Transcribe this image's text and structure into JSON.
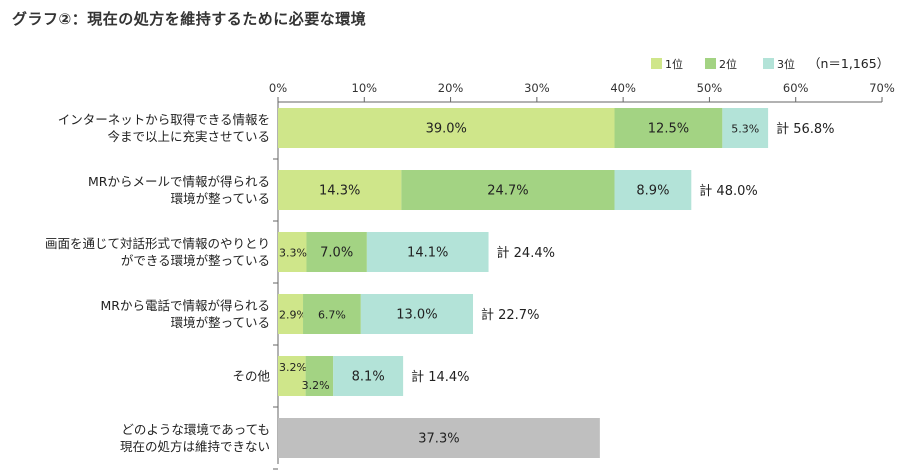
{
  "title": "グラフ②：現在の処方を維持するために必要な環境",
  "chart_data": {
    "type": "bar",
    "orientation": "horizontal",
    "stacked": true,
    "xlim": [
      0,
      70
    ],
    "ticks": [
      "0%",
      "10%",
      "20%",
      "30%",
      "40%",
      "50%",
      "60%",
      "70%"
    ],
    "tick_values": [
      0,
      10,
      20,
      30,
      40,
      50,
      60,
      70
    ],
    "legend": {
      "position": "top-right",
      "entries": [
        "1位",
        "2位",
        "3位"
      ],
      "note": "（n＝1,165）"
    },
    "colors": [
      "#cfe68a",
      "#a3d383",
      "#b3e3d8",
      "#bfbfbf"
    ],
    "categories": [
      {
        "lines": [
          "インターネットから取得できる情報を",
          "今まで以上に充実させている"
        ],
        "values": [
          39.0,
          12.5,
          5.3
        ],
        "labels": [
          "39.0%",
          "12.5%",
          "5.3%"
        ],
        "total": "計 56.8%"
      },
      {
        "lines": [
          "MRからメールで情報が得られる",
          "環境が整っている"
        ],
        "values": [
          14.3,
          24.7,
          8.9
        ],
        "labels": [
          "14.3%",
          "24.7%",
          "8.9%"
        ],
        "total": "計 48.0%"
      },
      {
        "lines": [
          "画面を通じて対話形式で情報のやりとり",
          "ができる環境が整っている"
        ],
        "values": [
          3.3,
          7.0,
          14.1
        ],
        "labels": [
          "3.3%",
          "7.0%",
          "14.1%"
        ],
        "total": "計 24.4%"
      },
      {
        "lines": [
          "MRから電話で情報が得られる",
          "環境が整っている"
        ],
        "values": [
          2.9,
          6.7,
          13.0
        ],
        "labels": [
          "2.9%",
          "6.7%",
          "13.0%"
        ],
        "total": "計 22.7%"
      },
      {
        "lines": [
          "その他"
        ],
        "values": [
          3.2,
          3.2,
          8.1
        ],
        "labels": [
          "3.2%",
          "3.2%",
          "8.1%"
        ],
        "total": "計 14.4%"
      },
      {
        "lines": [
          "どのような環境であっても",
          "現在の処方は維持できない"
        ],
        "values": [
          37.3
        ],
        "labels": [
          "37.3%"
        ],
        "total": "",
        "single": true
      }
    ]
  }
}
